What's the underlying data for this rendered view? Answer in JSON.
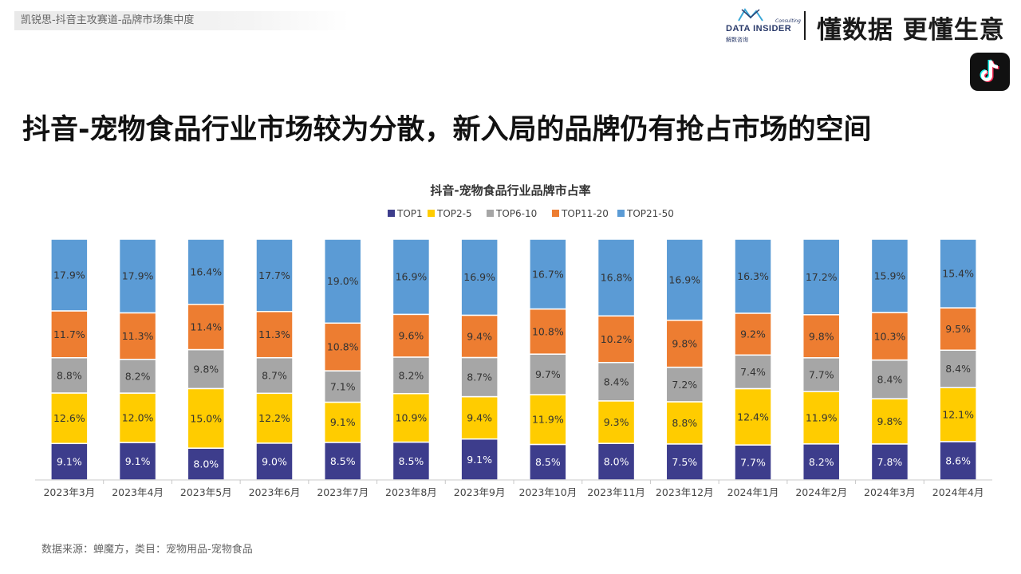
{
  "header": {
    "breadcrumb": "凯锐思-抖音主攻赛道-品牌市场集中度",
    "logo_text": "DATA INSIDER",
    "logo_subtext": "解数咨询",
    "logo_consult": "Consulting",
    "slogan": "懂数据 更懂生意",
    "platform_icon": "tiktok-icon"
  },
  "headline": "抖音-宠物食品行业市场较为分散，新入局的品牌仍有抢占市场的空间",
  "footer": {
    "source": "数据来源：蝉魔方，类目：宠物用品-宠物食品"
  },
  "chart_data": {
    "type": "bar",
    "stacked": true,
    "title": "抖音-宠物食品行业品牌市占率",
    "legend_position": "top",
    "grid": false,
    "categories": [
      "2023年3月",
      "2023年4月",
      "2023年5月",
      "2023年6月",
      "2023年7月",
      "2023年8月",
      "2023年9月",
      "2023年10月",
      "2023年11月",
      "2023年12月",
      "2024年1月",
      "2024年2月",
      "2024年3月",
      "2024年4月"
    ],
    "series": [
      {
        "name": "TOP1",
        "color": "#3d3d8c",
        "label_color": "#ffffff",
        "values": [
          9.1,
          9.1,
          8.0,
          9.0,
          8.5,
          8.5,
          9.1,
          8.5,
          8.0,
          7.5,
          7.7,
          8.2,
          7.8,
          8.6
        ]
      },
      {
        "name": "TOP2-5",
        "color": "#ffcc00",
        "label_color": "#333333",
        "values": [
          12.6,
          12.0,
          15.0,
          12.2,
          9.1,
          10.9,
          9.4,
          11.9,
          9.3,
          8.8,
          12.4,
          11.9,
          9.8,
          12.1
        ]
      },
      {
        "name": "TOP6-10",
        "color": "#a6a6a6",
        "label_color": "#333333",
        "values": [
          8.8,
          8.2,
          9.8,
          8.7,
          7.1,
          8.2,
          8.7,
          9.7,
          8.4,
          7.2,
          7.4,
          7.7,
          8.4,
          8.4
        ]
      },
      {
        "name": "TOP11-20",
        "color": "#ed7d31",
        "label_color": "#333333",
        "values": [
          11.7,
          11.3,
          11.4,
          11.3,
          10.8,
          9.6,
          9.4,
          10.8,
          10.2,
          9.8,
          9.2,
          9.8,
          10.3,
          9.5
        ]
      },
      {
        "name": "TOP21-50",
        "color": "#5b9bd5",
        "label_color": "#333333",
        "values": [
          17.9,
          17.9,
          16.4,
          17.7,
          19.0,
          16.9,
          16.9,
          16.7,
          16.8,
          16.9,
          16.3,
          17.2,
          15.9,
          15.4
        ]
      }
    ],
    "value_suffix": "%"
  }
}
